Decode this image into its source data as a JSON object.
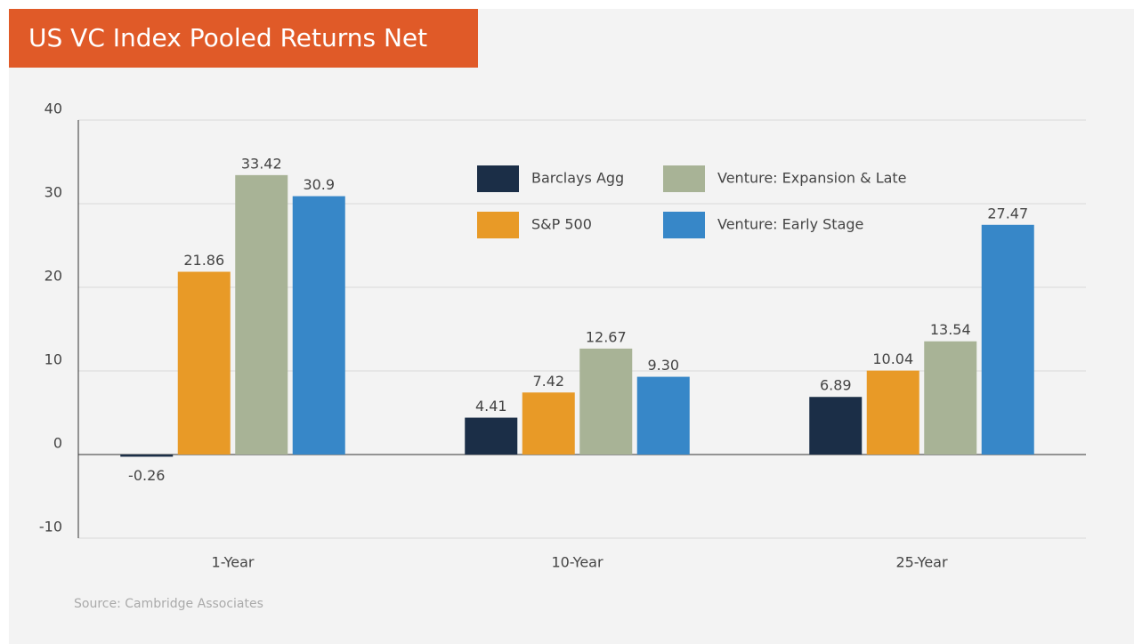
{
  "chart_data": {
    "type": "bar",
    "title": "US VC Index Pooled Returns Net",
    "categories": [
      "1-Year",
      "10-Year",
      "25-Year"
    ],
    "series": [
      {
        "name": "Barclays Agg",
        "color": "#1b2e47",
        "values": [
          -0.26,
          4.41,
          6.89
        ],
        "value_labels": [
          "-0.26",
          "4.41",
          "6.89"
        ]
      },
      {
        "name": "S&P 500",
        "color": "#e89a27",
        "values": [
          21.86,
          7.42,
          10.04
        ],
        "value_labels": [
          "21.86",
          "7.42",
          "10.04"
        ]
      },
      {
        "name": "Venture: Expansion & Late",
        "color": "#a8b396",
        "values": [
          33.42,
          12.67,
          13.54
        ],
        "value_labels": [
          "33.42",
          "12.67",
          "13.54"
        ]
      },
      {
        "name": "Venture: Early Stage",
        "color": "#3787c8",
        "values": [
          30.9,
          9.3,
          27.47
        ],
        "value_labels": [
          "30.9",
          "9.30",
          "27.47"
        ]
      }
    ],
    "ylim": [
      -10,
      40
    ],
    "yticks": [
      -10,
      0,
      10,
      20,
      30,
      40
    ],
    "grid": true,
    "source": "Source: Cambridge Associates"
  }
}
